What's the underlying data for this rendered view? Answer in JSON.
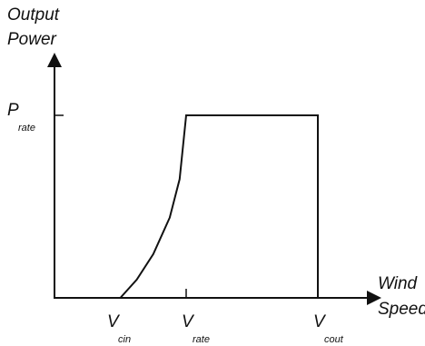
{
  "chart_data": {
    "type": "line",
    "ylabel": [
      "Output",
      "Power"
    ],
    "xlabel": [
      "Wind",
      "Speed"
    ],
    "x_ticks": [
      {
        "main": "V",
        "sub": "cin",
        "x": 1
      },
      {
        "main": "V",
        "sub": "rate",
        "x": 2
      },
      {
        "main": "V",
        "sub": "cout",
        "x": 4
      }
    ],
    "y_ticks": [
      {
        "main": "P",
        "sub": "rate",
        "y": 1
      }
    ],
    "xlim": [
      0,
      4.7
    ],
    "ylim": [
      0,
      1.3
    ],
    "series": [
      {
        "points": [
          [
            1,
            0
          ],
          [
            1.25,
            0.1
          ],
          [
            1.5,
            0.24
          ],
          [
            1.75,
            0.44
          ],
          [
            1.9,
            0.65
          ],
          [
            2,
            1
          ],
          [
            4,
            1
          ],
          [
            4,
            0
          ]
        ]
      }
    ],
    "colors": {
      "line": "#111111",
      "axis": "#111111"
    },
    "grid": false
  }
}
